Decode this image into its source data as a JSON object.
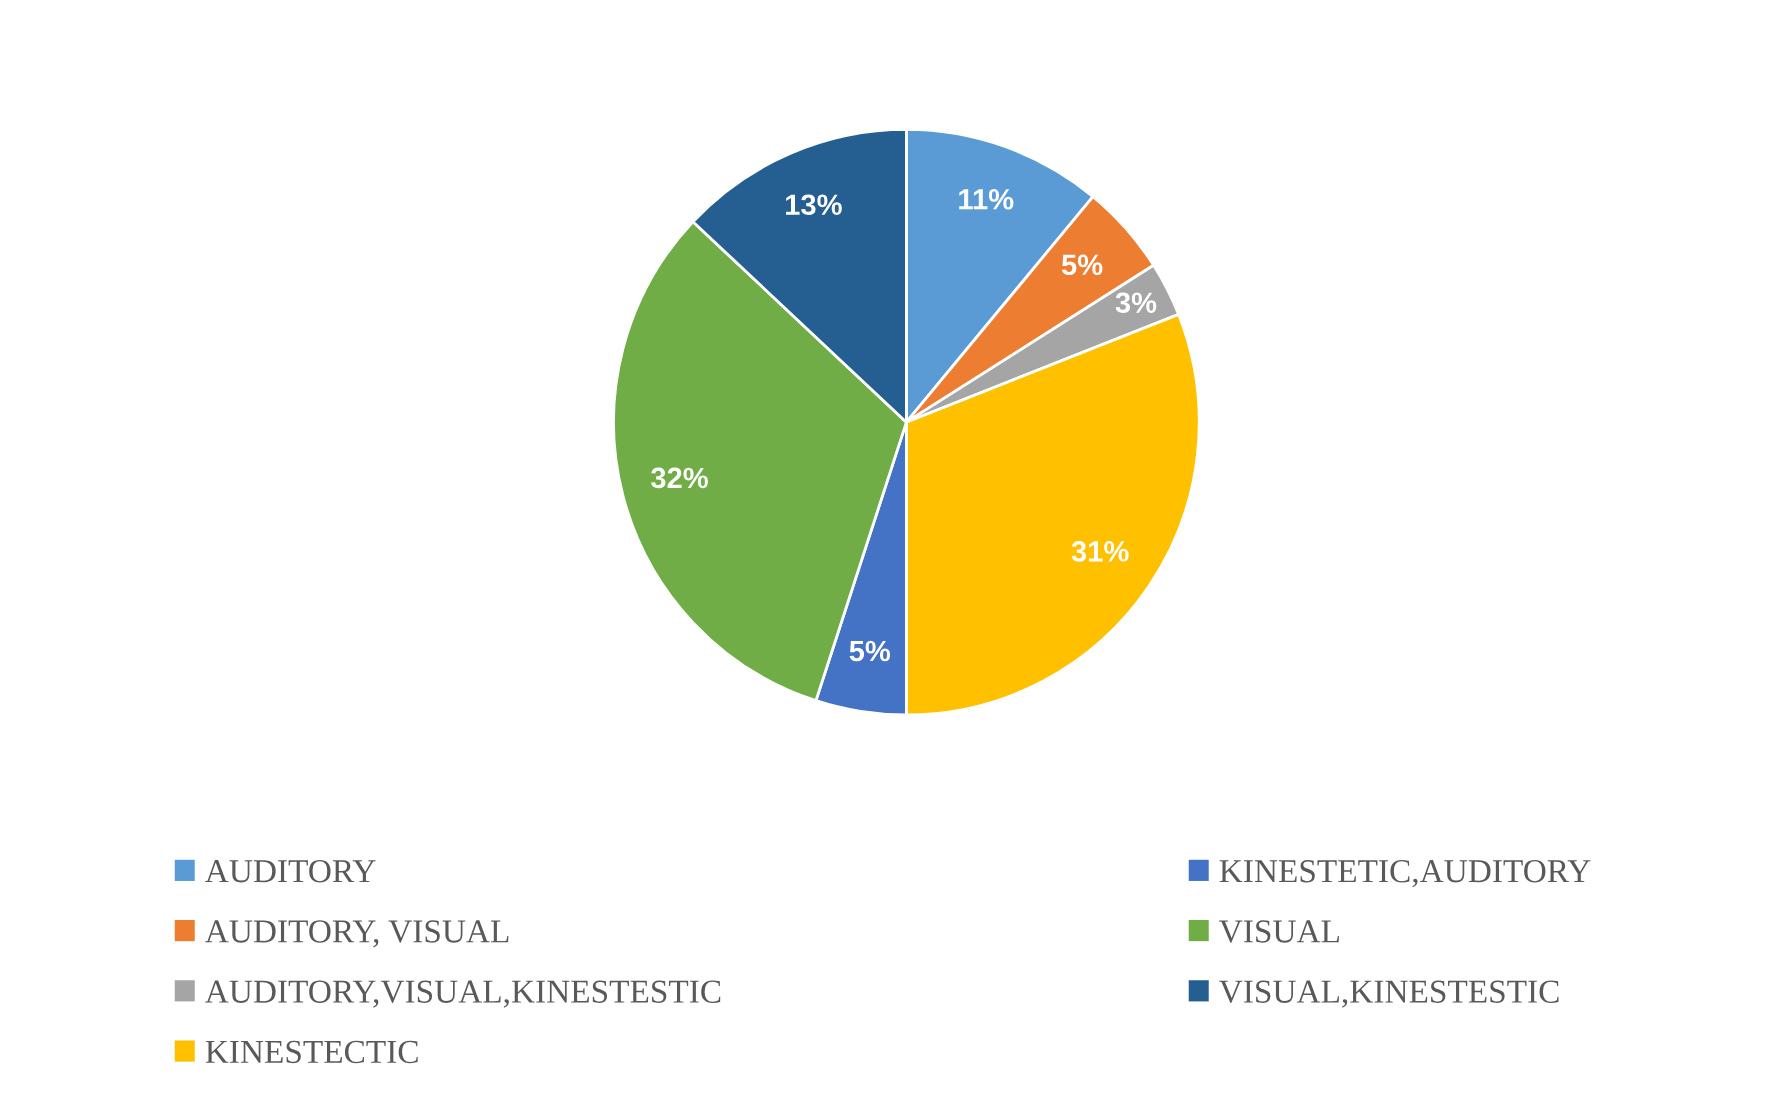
{
  "chart_data": {
    "type": "pie",
    "categories": [
      "AUDITORY",
      "AUDITORY, VISUAL",
      "AUDITORY,VISUAL,KINESTESTIC",
      "KINESTECTIC",
      "KINESTETIC,AUDITORY",
      "VISUAL",
      "VISUAL,KINESTESTIC"
    ],
    "values": [
      11,
      5,
      3,
      31,
      5,
      32,
      13
    ],
    "colors": [
      "#5b9bd5",
      "#ed7d31",
      "#a5a5a5",
      "#ffc000",
      "#4472c4",
      "#70ad47",
      "#255e91"
    ],
    "value_labels": [
      "11%",
      "5%",
      "3%",
      "31%",
      "5%",
      "32%",
      "13%"
    ],
    "legend": "bottom"
  }
}
